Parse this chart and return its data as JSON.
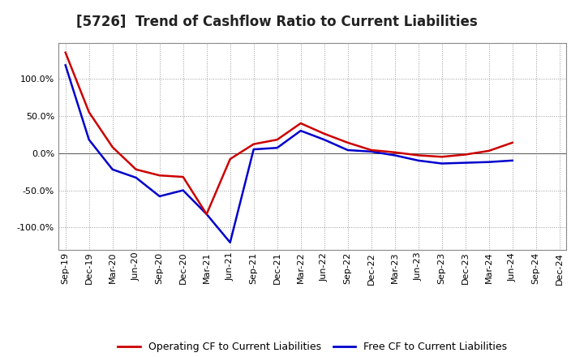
{
  "title": "[5726]  Trend of Cashflow Ratio to Current Liabilities",
  "x_labels": [
    "Sep-19",
    "Dec-19",
    "Mar-20",
    "Jun-20",
    "Sep-20",
    "Dec-20",
    "Mar-21",
    "Jun-21",
    "Sep-21",
    "Dec-21",
    "Mar-22",
    "Jun-22",
    "Sep-22",
    "Dec-22",
    "Mar-23",
    "Jun-23",
    "Sep-23",
    "Dec-23",
    "Mar-24",
    "Jun-24",
    "Sep-24",
    "Dec-24"
  ],
  "operating_cf": [
    135,
    55,
    8,
    -22,
    -30,
    -32,
    -82,
    -8,
    12,
    18,
    40,
    26,
    14,
    4,
    1,
    -3,
    -5,
    -2,
    3,
    14,
    null,
    null
  ],
  "free_cf": [
    118,
    18,
    -22,
    -33,
    -58,
    -50,
    -82,
    -120,
    5,
    7,
    30,
    18,
    4,
    2,
    -3,
    -10,
    -14,
    -13,
    -12,
    -10,
    null,
    null
  ],
  "operating_color": "#cc0000",
  "free_color": "#0000cc",
  "legend_labels": [
    "Operating CF to Current Liabilities",
    "Free CF to Current Liabilities"
  ],
  "ylim": [
    -130,
    148
  ],
  "yticks": [
    -100,
    -50,
    0,
    50,
    100
  ],
  "grid_color": "#999999",
  "bg_color": "#ffffff",
  "title_fontsize": 12,
  "axis_fontsize": 8,
  "legend_fontsize": 9,
  "line_width": 1.8
}
